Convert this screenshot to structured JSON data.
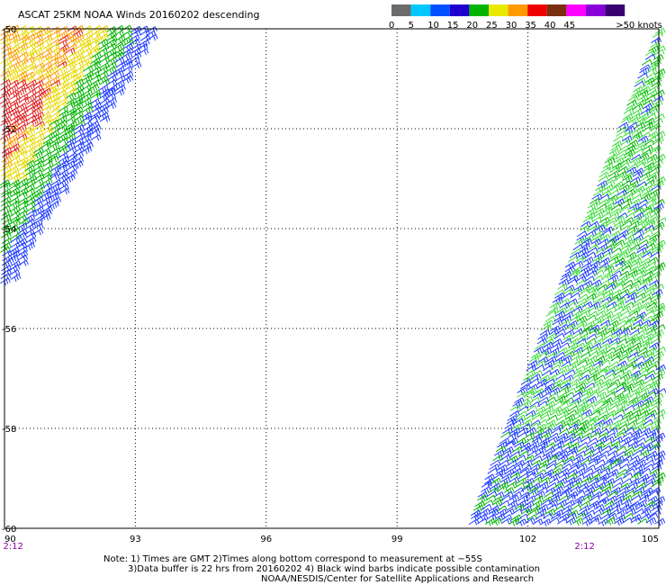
{
  "title": "ASCAT 25KM NOAA Winds 20160202 descending",
  "legend": {
    "bins": [
      {
        "label": "0",
        "color": "#6b6b6b"
      },
      {
        "label": "5",
        "color": "#00c8ff"
      },
      {
        "label": "10",
        "color": "#0050ff"
      },
      {
        "label": "15",
        "color": "#1f00d0"
      },
      {
        "label": "20",
        "color": "#00b400"
      },
      {
        "label": "25",
        "color": "#e8e800"
      },
      {
        "label": "30",
        "color": "#ff9a00"
      },
      {
        "label": "35",
        "color": "#f00000"
      },
      {
        "label": "40",
        "color": "#7a3010"
      },
      {
        "label": "45",
        "color": "#ff00ff"
      },
      {
        "label": "",
        "color": "#8a00d8"
      },
      {
        "label": "",
        "color": "#3a0070"
      }
    ],
    "end_label": ">50 knots"
  },
  "chart_data": {
    "type": "wind-barb-map",
    "title": "ASCAT 25KM NOAA Winds 20160202 descending",
    "x_axis": {
      "label": "",
      "ticks": [
        "90",
        "93",
        "96",
        "99",
        "102",
        "105"
      ],
      "range": [
        90,
        105
      ]
    },
    "y_axis": {
      "label": "",
      "ticks": [
        "-50",
        "-52",
        "-54",
        "-56",
        "-58",
        "-60"
      ],
      "range": [
        -60,
        -50
      ]
    },
    "grid": true,
    "time_marks": [
      {
        "lon": 90.2,
        "text": "2:12"
      },
      {
        "lon": 103.3,
        "text": "2:12"
      }
    ],
    "swaths": [
      {
        "name": "west",
        "lon_range": [
          90,
          93.5
        ],
        "lat_range": [
          -55.5,
          -50
        ],
        "vectors_per_point": "barb",
        "speed_bands": [
          {
            "color": "#e8d800",
            "approx_knots": 25
          },
          {
            "color": "#ff9a00",
            "approx_knots": 30
          },
          {
            "color": "#e02020",
            "approx_knots": 35
          },
          {
            "color": "#00b400",
            "approx_knots": 20
          },
          {
            "color": "#1f3cff",
            "approx_knots": 15
          }
        ]
      },
      {
        "name": "east",
        "lon_range": [
          100.4,
          105
        ],
        "lat_range": [
          -60,
          -50
        ],
        "vectors_per_point": "barb",
        "speed_bands": [
          {
            "color": "#3cdc3c",
            "approx_knots": 20
          },
          {
            "color": "#00b400",
            "approx_knots": 20
          },
          {
            "color": "#1f3cff",
            "approx_knots": 15
          }
        ]
      }
    ]
  },
  "notes": {
    "line1": "Note: 1) Times are GMT 2)Times along bottom correspond to measurement at −55S",
    "line2": "3)Data buffer is 22 hrs from 20160202 4) Black wind barbs indicate possible contamination",
    "line3": "NOAA/NESDIS/Center for Satellite Applications and Research"
  },
  "colors": {
    "time_label": "#8a00a8"
  }
}
